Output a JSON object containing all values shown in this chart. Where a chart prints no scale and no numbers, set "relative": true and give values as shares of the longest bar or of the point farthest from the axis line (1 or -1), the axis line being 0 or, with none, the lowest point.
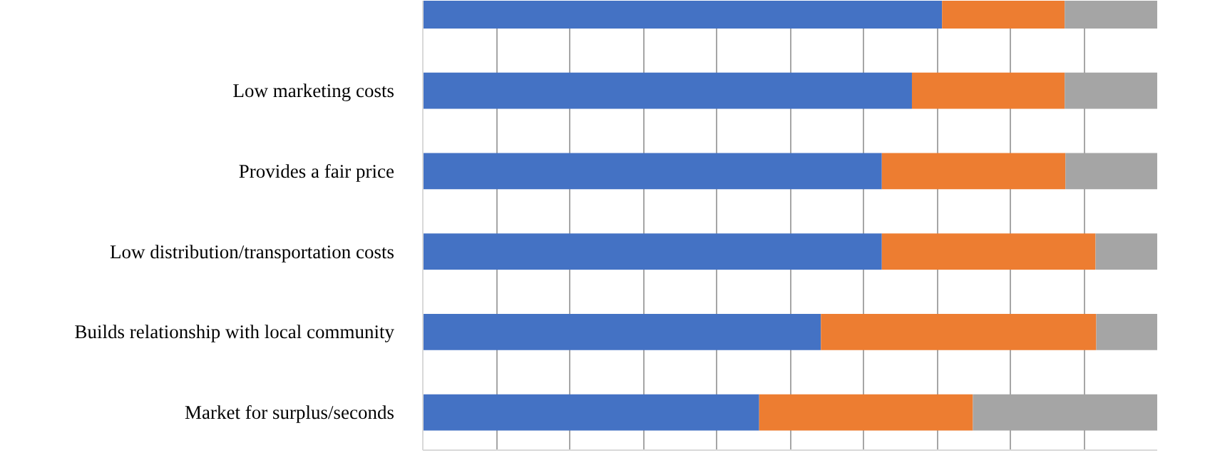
{
  "chart_data": {
    "type": "bar",
    "orientation": "horizontal",
    "stacked": true,
    "relative": true,
    "grid": "x",
    "categories": [
      null,
      "Low marketing costs",
      "Provides a fair price",
      "Low distribution/transportation costs",
      "Builds relationship with local community",
      "Market for surplus/seconds"
    ],
    "series": [
      {
        "color": "#4472c4",
        "values": [
          0.707,
          0.666,
          0.625,
          0.625,
          0.542,
          0.458
        ]
      },
      {
        "color": "#ed7d31",
        "values": [
          0.167,
          0.208,
          0.25,
          0.291,
          0.375,
          0.291
        ]
      },
      {
        "color": "#a5a5a5",
        "values": [
          0.126,
          0.126,
          0.125,
          0.084,
          0.083,
          0.251
        ]
      }
    ]
  }
}
